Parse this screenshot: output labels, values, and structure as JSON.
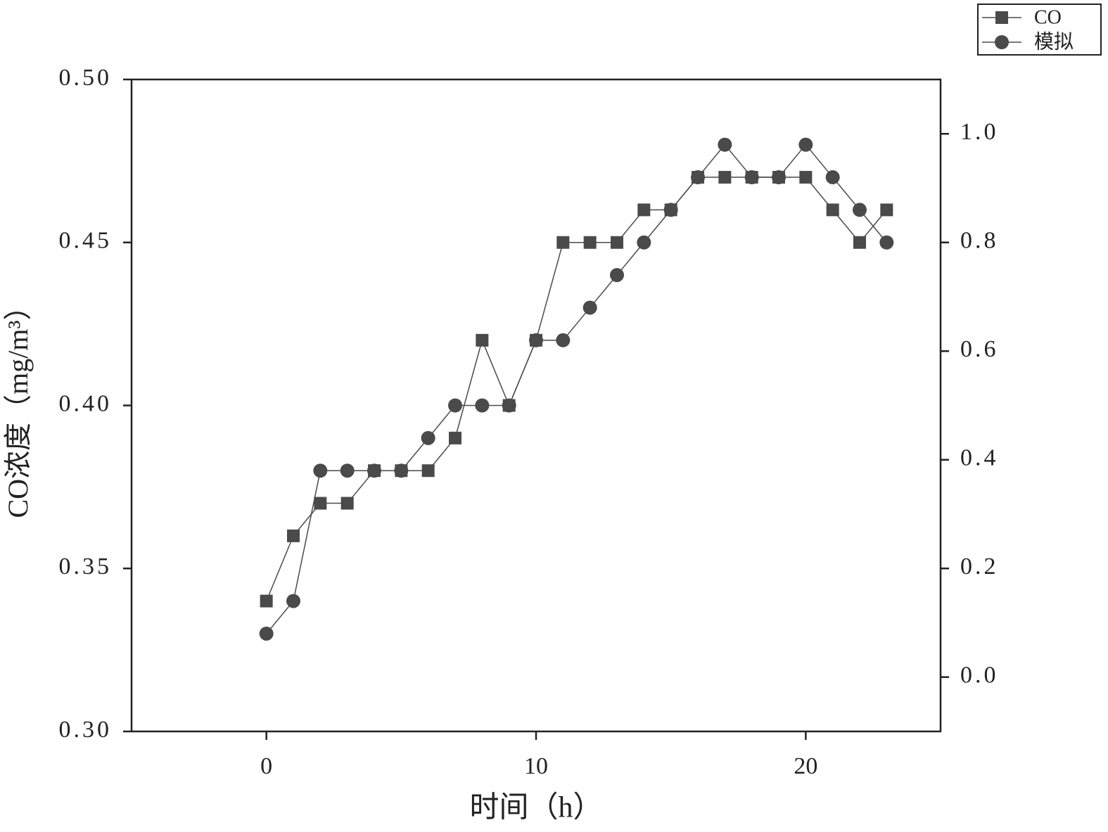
{
  "chart_data": {
    "type": "line",
    "x_label": "时间（h）",
    "y_label": "CO浓度（mg/m³）",
    "x": [
      0,
      1,
      2,
      3,
      4,
      5,
      6,
      7,
      8,
      9,
      10,
      11,
      12,
      13,
      14,
      15,
      16,
      17,
      18,
      19,
      20,
      21,
      22,
      23
    ],
    "series": [
      {
        "name": "CO",
        "color": "#4a4a4a",
        "marker": "square",
        "values": [
          0.34,
          0.36,
          0.37,
          0.37,
          0.38,
          0.38,
          0.38,
          0.39,
          0.42,
          0.4,
          0.42,
          0.45,
          0.45,
          0.45,
          0.46,
          0.46,
          0.47,
          0.47,
          0.47,
          0.47,
          0.47,
          0.46,
          0.45,
          0.46
        ]
      },
      {
        "name": "模拟",
        "color": "#4a4a4a",
        "marker": "circle",
        "values": [
          0.33,
          0.34,
          0.38,
          0.38,
          0.38,
          0.38,
          0.39,
          0.4,
          0.4,
          0.4,
          0.42,
          0.42,
          0.43,
          0.44,
          0.45,
          0.46,
          0.47,
          0.48,
          0.47,
          0.47,
          0.48,
          0.47,
          0.46,
          0.45
        ]
      }
    ],
    "xlim": [
      -5,
      25
    ],
    "xticks": [
      0,
      10,
      20
    ],
    "ylim": [
      0.3,
      0.5
    ],
    "yticks": [
      {
        "value": 0.3,
        "label": "0.30"
      },
      0.35,
      {
        "value": 0.4,
        "label": "0.40"
      },
      0.45,
      {
        "value": 0.5,
        "label": "0.50"
      }
    ],
    "y2lim": [
      -0.1,
      1.1
    ],
    "y2ticks": [
      {
        "value": 0,
        "label": "0.0"
      },
      0.2,
      0.4,
      0.6,
      0.8,
      {
        "value": 1,
        "label": "1.0"
      }
    ],
    "legend": "top-right"
  }
}
